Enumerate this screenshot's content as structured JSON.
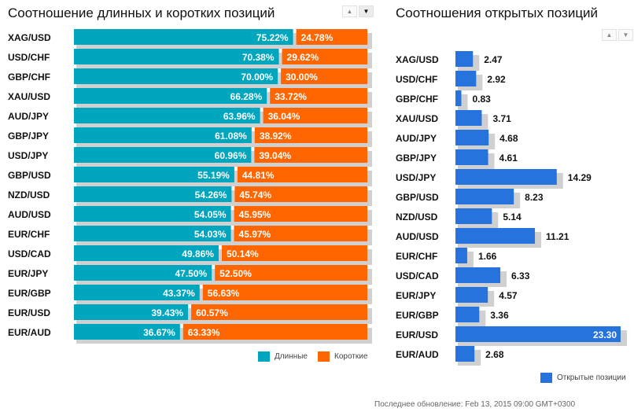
{
  "colors": {
    "long": "#00a5be",
    "short": "#ff6600",
    "open": "#2673de",
    "shadow": "#d0d0d0"
  },
  "sort_controls": {
    "up": "▲",
    "down": "▼"
  },
  "chart_data": [
    {
      "type": "bar",
      "orientation": "horizontal-stacked-100",
      "title": "Соотношение длинных и коротких позиций",
      "categories": [
        "XAG/USD",
        "USD/CHF",
        "GBP/CHF",
        "XAU/USD",
        "AUD/JPY",
        "GBP/JPY",
        "USD/JPY",
        "GBP/USD",
        "NZD/USD",
        "AUD/USD",
        "EUR/CHF",
        "USD/CAD",
        "EUR/JPY",
        "EUR/GBP",
        "EUR/USD",
        "EUR/AUD"
      ],
      "series": [
        {
          "name": "Длинные",
          "values": [
            75.22,
            70.38,
            70.0,
            66.28,
            63.96,
            61.08,
            60.96,
            55.19,
            54.26,
            54.05,
            54.03,
            49.86,
            47.5,
            43.37,
            39.43,
            36.67
          ]
        },
        {
          "name": "Короткие",
          "values": [
            24.78,
            29.62,
            30.0,
            33.72,
            36.04,
            38.92,
            39.04,
            44.81,
            45.74,
            45.95,
            45.97,
            50.14,
            52.5,
            56.63,
            60.57,
            63.33
          ]
        }
      ],
      "value_labels": {
        "long": [
          "75.22%",
          "70.38%",
          "70.00%",
          "66.28%",
          "63.96%",
          "61.08%",
          "60.96%",
          "55.19%",
          "54.26%",
          "54.05%",
          "54.03%",
          "49.86%",
          "47.50%",
          "43.37%",
          "39.43%",
          "36.67%"
        ],
        "short": [
          "24.78%",
          "29.62%",
          "30.00%",
          "33.72%",
          "36.04%",
          "38.92%",
          "39.04%",
          "44.81%",
          "45.74%",
          "45.95%",
          "45.97%",
          "50.14%",
          "52.50%",
          "56.63%",
          "60.57%",
          "63.33%"
        ]
      },
      "xlim": [
        0,
        100
      ],
      "legend": {
        "position": "bottom-right",
        "items": [
          "Длинные",
          "Короткие"
        ]
      }
    },
    {
      "type": "bar",
      "orientation": "horizontal",
      "title": "Соотношения открытых позиций",
      "categories": [
        "XAG/USD",
        "USD/CHF",
        "GBP/CHF",
        "XAU/USD",
        "AUD/JPY",
        "GBP/JPY",
        "USD/JPY",
        "GBP/USD",
        "NZD/USD",
        "AUD/USD",
        "EUR/CHF",
        "USD/CAD",
        "EUR/JPY",
        "EUR/GBP",
        "EUR/USD",
        "EUR/AUD"
      ],
      "series": [
        {
          "name": "Открытые позиции",
          "values": [
            2.47,
            2.92,
            0.83,
            3.71,
            4.68,
            4.61,
            14.29,
            8.23,
            5.14,
            11.21,
            1.66,
            6.33,
            4.57,
            3.36,
            23.3,
            2.68
          ]
        }
      ],
      "value_labels": [
        "2.47",
        "2.92",
        "0.83",
        "3.71",
        "4.68",
        "4.61",
        "14.29",
        "8.23",
        "5.14",
        "11.21",
        "1.66",
        "6.33",
        "4.57",
        "3.36",
        "23.30",
        "2.68"
      ],
      "xlim": [
        0,
        23.3
      ],
      "legend": {
        "position": "bottom-right",
        "items": [
          "Открытые позиции"
        ]
      }
    }
  ],
  "footer": "Последнее обновление: Feb 13, 2015 09:00 GMT+0300"
}
